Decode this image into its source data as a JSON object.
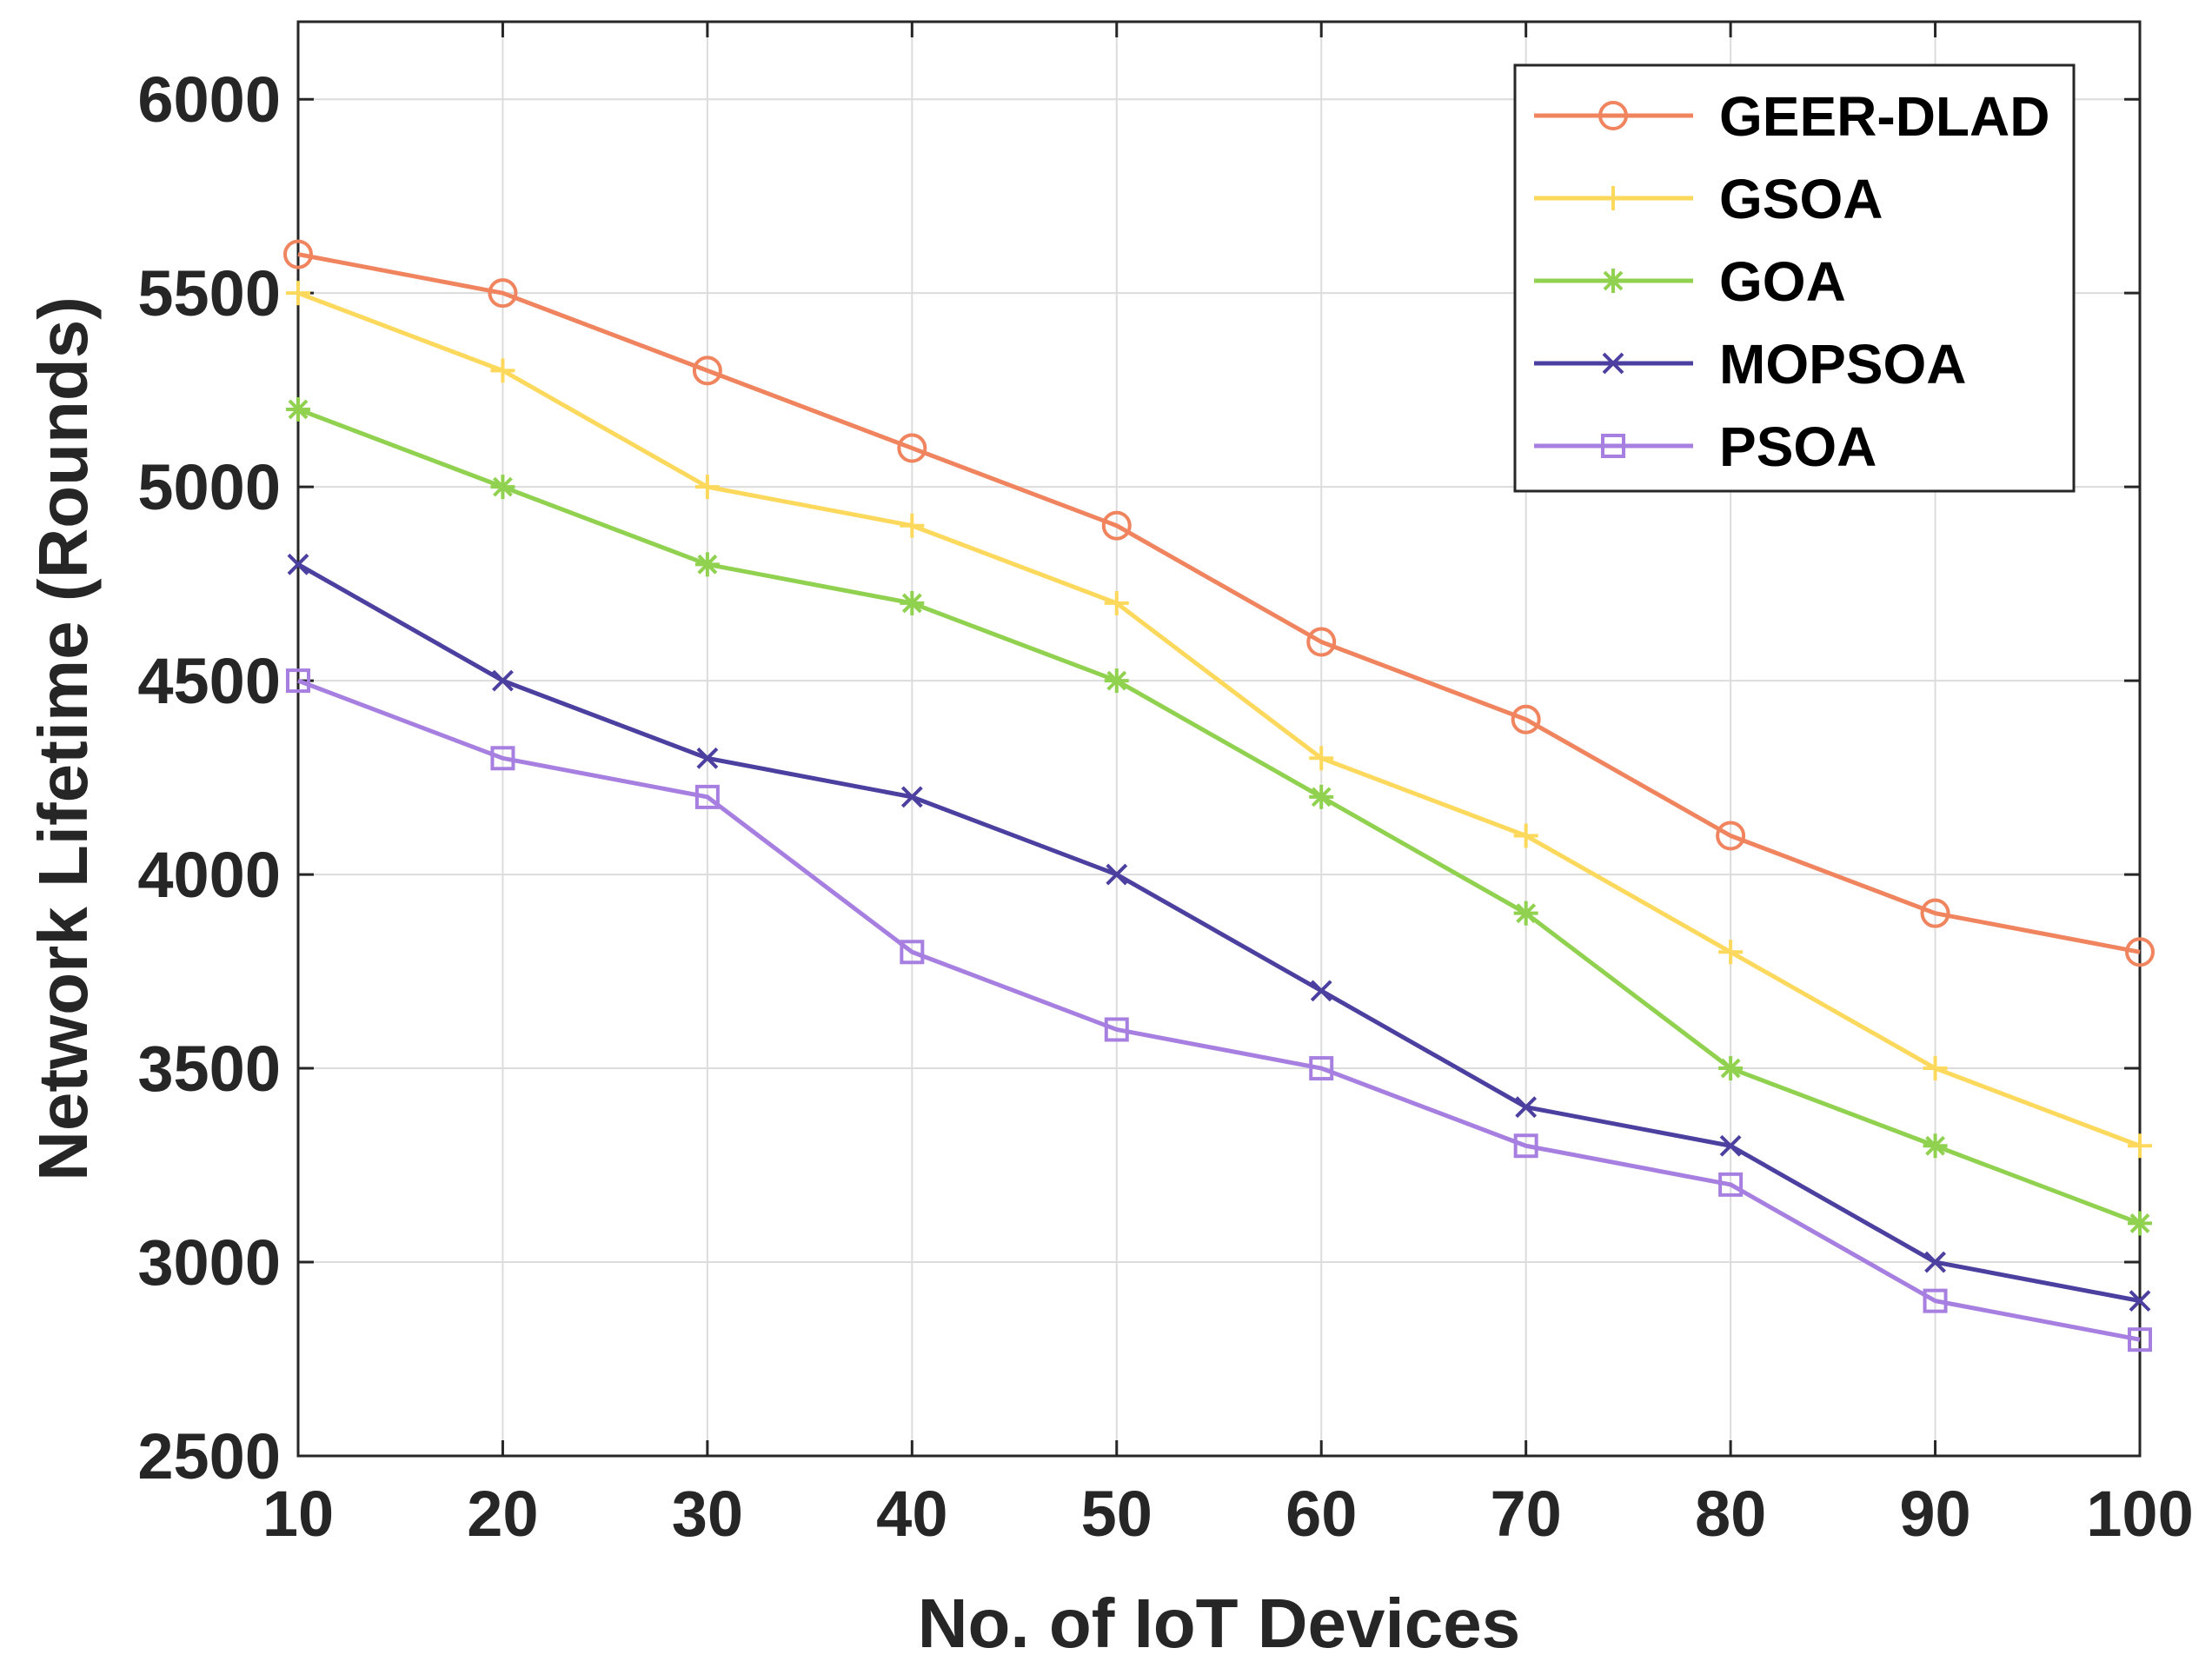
{
  "chart_data": {
    "type": "line",
    "title": "",
    "xlabel": "No. of IoT Devices",
    "ylabel": "Network Lifetime (Rounds)",
    "x": [
      10,
      20,
      30,
      40,
      50,
      60,
      70,
      80,
      90,
      100
    ],
    "xlim": [
      10,
      100
    ],
    "ylim": [
      2500,
      6200
    ],
    "xticks": [
      "10",
      "20",
      "30",
      "40",
      "50",
      "60",
      "70",
      "80",
      "90",
      "100"
    ],
    "yticks": [
      "2500",
      "3000",
      "3500",
      "4000",
      "4500",
      "5000",
      "5500",
      "6000"
    ],
    "grid": true,
    "legend_position": "top-right",
    "series": [
      {
        "name": "GEER-DLAD",
        "color": "#F0845F",
        "marker": "circle",
        "values": [
          5600,
          5500,
          5300,
          5100,
          4900,
          4600,
          4400,
          4100,
          3900,
          3800
        ]
      },
      {
        "name": "GSOA",
        "color": "#FCD95C",
        "marker": "plus",
        "values": [
          5500,
          5300,
          5000,
          4900,
          4700,
          4300,
          4100,
          3800,
          3500,
          3300
        ]
      },
      {
        "name": "GOA",
        "color": "#90D150",
        "marker": "asterisk",
        "values": [
          5200,
          5000,
          4800,
          4700,
          4500,
          4200,
          3900,
          3500,
          3300,
          3100
        ]
      },
      {
        "name": "MOPSOA",
        "color": "#4B3FA0",
        "marker": "x",
        "values": [
          4800,
          4500,
          4300,
          4200,
          4000,
          3700,
          3400,
          3300,
          3000,
          2900
        ]
      },
      {
        "name": "PSOA",
        "color": "#A67FE0",
        "marker": "square",
        "values": [
          4500,
          4300,
          4200,
          3800,
          3600,
          3500,
          3300,
          3200,
          2900,
          2800
        ]
      }
    ]
  }
}
